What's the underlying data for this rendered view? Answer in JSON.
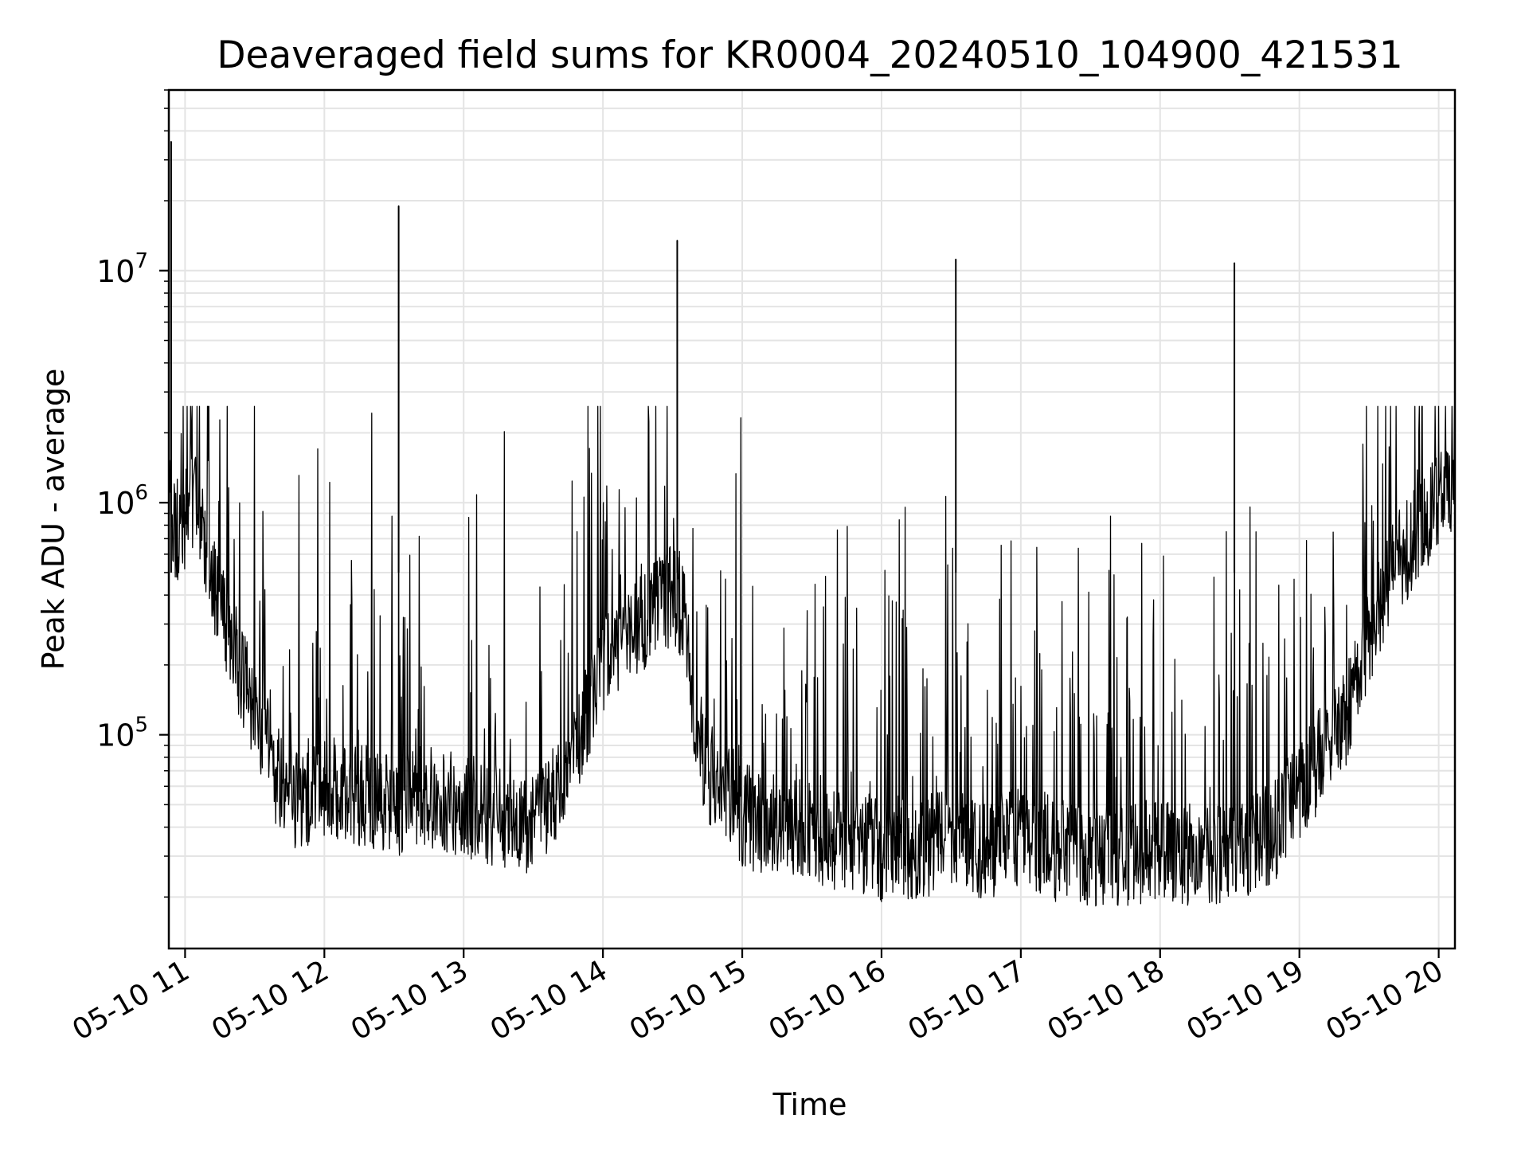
{
  "chart_data": {
    "type": "line",
    "title": "Deaveraged field sums for KR0004_20240510_104900_421531",
    "xlabel": "Time",
    "ylabel": "Peak ADU - average",
    "yscale": "log",
    "ylim": [
      12000,
      60000000
    ],
    "xlim": [
      "2024-05-10T10:53",
      "2024-05-10T20:07"
    ],
    "grid": true,
    "line_color": "#000000",
    "x_ticks": [
      {
        "value": "2024-05-10T11:00",
        "label": "05-10 11"
      },
      {
        "value": "2024-05-10T12:00",
        "label": "05-10 12"
      },
      {
        "value": "2024-05-10T13:00",
        "label": "05-10 13"
      },
      {
        "value": "2024-05-10T14:00",
        "label": "05-10 14"
      },
      {
        "value": "2024-05-10T15:00",
        "label": "05-10 15"
      },
      {
        "value": "2024-05-10T16:00",
        "label": "05-10 16"
      },
      {
        "value": "2024-05-10T17:00",
        "label": "05-10 17"
      },
      {
        "value": "2024-05-10T18:00",
        "label": "05-10 18"
      },
      {
        "value": "2024-05-10T19:00",
        "label": "05-10 19"
      },
      {
        "value": "2024-05-10T20:00",
        "label": "05-10 20"
      }
    ],
    "y_ticks": [
      {
        "value": 100000,
        "base": "10",
        "exp": "5"
      },
      {
        "value": 1000000,
        "base": "10",
        "exp": "6"
      },
      {
        "value": 10000000,
        "base": "10",
        "exp": "7"
      }
    ],
    "series": [
      {
        "x": [
          "2024-05-10T10:53",
          "2024-05-10T10:55",
          "2024-05-10T10:57",
          "2024-05-10T11:00",
          "2024-05-10T11:05",
          "2024-05-10T11:10",
          "2024-05-10T11:15",
          "2024-05-10T11:20",
          "2024-05-10T11:25",
          "2024-05-10T11:30",
          "2024-05-10T11:35",
          "2024-05-10T11:40",
          "2024-05-10T11:45",
          "2024-05-10T11:50",
          "2024-05-10T12:00",
          "2024-05-10T12:15",
          "2024-05-10T12:30",
          "2024-05-10T12:45",
          "2024-05-10T13:00",
          "2024-05-10T13:15",
          "2024-05-10T13:25",
          "2024-05-10T13:35",
          "2024-05-10T13:45",
          "2024-05-10T14:00",
          "2024-05-10T14:15",
          "2024-05-10T14:30",
          "2024-05-10T14:35",
          "2024-05-10T14:40",
          "2024-05-10T14:45",
          "2024-05-10T14:55",
          "2024-05-10T15:00",
          "2024-05-10T15:15",
          "2024-05-10T15:30",
          "2024-05-10T15:45",
          "2024-05-10T16:00",
          "2024-05-10T16:15",
          "2024-05-10T16:30",
          "2024-05-10T16:45",
          "2024-05-10T17:00",
          "2024-05-10T17:15",
          "2024-05-10T17:30",
          "2024-05-10T17:45",
          "2024-05-10T18:00",
          "2024-05-10T18:15",
          "2024-05-10T18:30",
          "2024-05-10T18:40",
          "2024-05-10T18:50",
          "2024-05-10T19:00",
          "2024-05-10T19:10",
          "2024-05-10T19:20",
          "2024-05-10T19:30",
          "2024-05-10T19:40",
          "2024-05-10T19:50",
          "2024-05-10T20:00",
          "2024-05-10T20:07"
        ],
        "values": [
          1500000,
          800000,
          750000,
          850000,
          1000000,
          500000,
          350000,
          250000,
          180000,
          130000,
          90000,
          65000,
          55000,
          50000,
          60000,
          55000,
          50000,
          55000,
          50000,
          45000,
          40000,
          50000,
          70000,
          200000,
          300000,
          400000,
          350000,
          110000,
          70000,
          55000,
          45000,
          40000,
          38000,
          35000,
          32000,
          33000,
          35000,
          32000,
          38000,
          32000,
          30000,
          30000,
          32000,
          30000,
          32000,
          33000,
          40000,
          60000,
          80000,
          120000,
          250000,
          500000,
          700000,
          1000000,
          1200000
        ]
      }
    ],
    "spikes": [
      {
        "x": "2024-05-10T10:54",
        "value": 36000000
      },
      {
        "x": "2024-05-10T12:32",
        "value": 19000000
      },
      {
        "x": "2024-05-10T14:32",
        "value": 13500000
      },
      {
        "x": "2024-05-10T16:32",
        "value": 11200000
      },
      {
        "x": "2024-05-10T18:32",
        "value": 10800000
      }
    ]
  }
}
